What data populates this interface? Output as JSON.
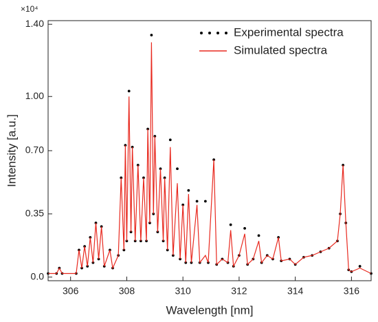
{
  "chart_data": {
    "type": "line",
    "x_label": "Wavelength [nm]",
    "y_label": "Intensity [a.u.]",
    "y_multiplier": "×10⁴",
    "legend_position": "upper right",
    "xlim": [
      305.2,
      316.7
    ],
    "xticks": [
      306,
      308,
      310,
      312,
      314,
      316
    ],
    "ylim": [
      -0.02,
      1.42
    ],
    "yticks": [
      {
        "value": 0,
        "label": "0.0"
      },
      0.35,
      {
        "value": 0.7,
        "label": "0.70"
      },
      {
        "value": 1.0,
        "label": "1.00"
      },
      {
        "value": 1.4,
        "label": "1.40"
      }
    ],
    "x": [
      305.2,
      305.5,
      305.6,
      305.7,
      306.2,
      306.3,
      306.4,
      306.5,
      306.6,
      306.7,
      306.8,
      306.9,
      307.0,
      307.1,
      307.2,
      307.4,
      307.5,
      307.7,
      307.8,
      307.9,
      307.95,
      308.0,
      308.08,
      308.15,
      308.2,
      308.3,
      308.4,
      308.5,
      308.6,
      308.7,
      308.75,
      308.82,
      308.88,
      308.95,
      309.0,
      309.1,
      309.2,
      309.3,
      309.35,
      309.45,
      309.55,
      309.65,
      309.8,
      309.9,
      310.0,
      310.1,
      310.2,
      310.3,
      310.5,
      310.6,
      310.8,
      310.9,
      311.1,
      311.2,
      311.4,
      311.6,
      311.7,
      311.8,
      312.0,
      312.2,
      312.3,
      312.5,
      312.7,
      312.8,
      313.0,
      313.2,
      313.4,
      313.5,
      313.8,
      314.0,
      314.3,
      314.6,
      314.9,
      315.2,
      315.5,
      315.6,
      315.7,
      315.8,
      315.9,
      316.0,
      316.3,
      316.7
    ],
    "series": [
      {
        "name": "Experimental spectra",
        "color": "#000000",
        "style": "dots",
        "values": [
          0.02,
          0.02,
          0.05,
          0.02,
          0.02,
          0.15,
          0.05,
          0.17,
          0.06,
          0.22,
          0.08,
          0.3,
          0.1,
          0.28,
          0.06,
          0.15,
          0.05,
          0.12,
          0.55,
          0.15,
          0.73,
          0.2,
          1.03,
          0.25,
          0.72,
          0.2,
          0.62,
          0.2,
          0.55,
          0.2,
          0.82,
          0.3,
          1.34,
          0.35,
          0.78,
          0.25,
          0.6,
          0.2,
          0.55,
          0.15,
          0.76,
          0.12,
          0.6,
          0.1,
          0.4,
          0.08,
          0.48,
          0.08,
          0.42,
          0.08,
          0.42,
          0.08,
          0.65,
          0.07,
          0.1,
          0.08,
          0.29,
          0.06,
          0.12,
          0.27,
          0.07,
          0.1,
          0.23,
          0.08,
          0.12,
          0.1,
          0.22,
          0.09,
          0.1,
          0.07,
          0.11,
          0.12,
          0.14,
          0.16,
          0.2,
          0.35,
          0.62,
          0.3,
          0.04,
          0.03,
          0.06,
          0.02
        ]
      },
      {
        "name": "Simulated spectra",
        "color": "#e8281e",
        "style": "line",
        "values": [
          0.02,
          0.02,
          0.05,
          0.02,
          0.02,
          0.15,
          0.05,
          0.17,
          0.06,
          0.22,
          0.08,
          0.3,
          0.1,
          0.28,
          0.06,
          0.15,
          0.05,
          0.12,
          0.55,
          0.15,
          0.73,
          0.2,
          1.0,
          0.25,
          0.72,
          0.2,
          0.62,
          0.2,
          0.55,
          0.2,
          0.82,
          0.3,
          1.3,
          0.35,
          0.78,
          0.25,
          0.6,
          0.2,
          0.55,
          0.15,
          0.72,
          0.12,
          0.52,
          0.1,
          0.4,
          0.08,
          0.46,
          0.08,
          0.4,
          0.08,
          0.12,
          0.08,
          0.65,
          0.07,
          0.1,
          0.08,
          0.26,
          0.06,
          0.12,
          0.24,
          0.07,
          0.1,
          0.2,
          0.08,
          0.12,
          0.1,
          0.22,
          0.09,
          0.1,
          0.07,
          0.11,
          0.12,
          0.14,
          0.16,
          0.2,
          0.35,
          0.62,
          0.3,
          0.04,
          0.03,
          0.05,
          0.02
        ]
      }
    ]
  }
}
